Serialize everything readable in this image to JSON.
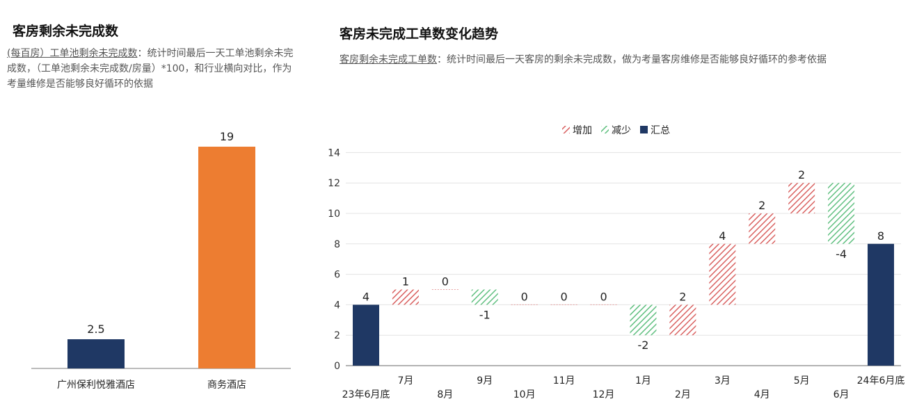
{
  "left_panel": {
    "title": "客房剩余未完成数",
    "desc_term": "(每百房）工单池剩余未完成数",
    "desc_text": "：统计时间最后一天工单池剩余未完成数，（工单池剩余未完成数/房量）*100，和行业横向对比，作为考量维修是否能够良好循环的依据"
  },
  "right_panel": {
    "title": "客房未完成工单数变化趋势",
    "desc_term": "客房剩余未完成工单数",
    "desc_text": "：统计时间最后一天客房的剩余未完成数，做为考量客房维修是否能够良好循环的参考依据"
  },
  "chart_data": [
    {
      "type": "bar",
      "categories": [
        "广州保利悦雅酒店",
        "商务酒店"
      ],
      "values": [
        2.5,
        19
      ],
      "value_labels": [
        "2.5",
        "19"
      ],
      "colors": [
        "#1f3864",
        "#ed7d31"
      ],
      "title": "",
      "xlabel": "",
      "ylabel": "",
      "ylim": [
        0,
        20
      ]
    },
    {
      "type": "bar",
      "subtype": "waterfall",
      "categories": [
        "23年6月底",
        "7月",
        "8月",
        "9月",
        "10月",
        "11月",
        "12月",
        "1月",
        "2月",
        "3月",
        "4月",
        "5月",
        "6月",
        "24年6月底"
      ],
      "values": [
        4,
        1,
        0,
        -1,
        0,
        0,
        0,
        -2,
        2,
        4,
        2,
        2,
        -4,
        8
      ],
      "kinds": [
        "total",
        "delta",
        "delta",
        "delta",
        "delta",
        "delta",
        "delta",
        "delta",
        "delta",
        "delta",
        "delta",
        "delta",
        "delta",
        "total"
      ],
      "value_labels": [
        "4",
        "1",
        "0",
        "-1",
        "0",
        "0",
        "0",
        "-2",
        "2",
        "4",
        "2",
        "2",
        "-4",
        "8"
      ],
      "legend": [
        {
          "name": "增加",
          "color": "#d9605f",
          "pattern": "hatch"
        },
        {
          "name": "减少",
          "color": "#5fbf7f",
          "pattern": "hatch"
        },
        {
          "name": "汇总",
          "color": "#1f3864",
          "pattern": "solid"
        }
      ],
      "legend_position": "top-center",
      "yticks": [
        "0",
        "2",
        "4",
        "6",
        "8",
        "10",
        "12",
        "14"
      ],
      "ylim": [
        0,
        14
      ],
      "grid": true,
      "title": "",
      "xlabel": "",
      "ylabel": ""
    }
  ]
}
